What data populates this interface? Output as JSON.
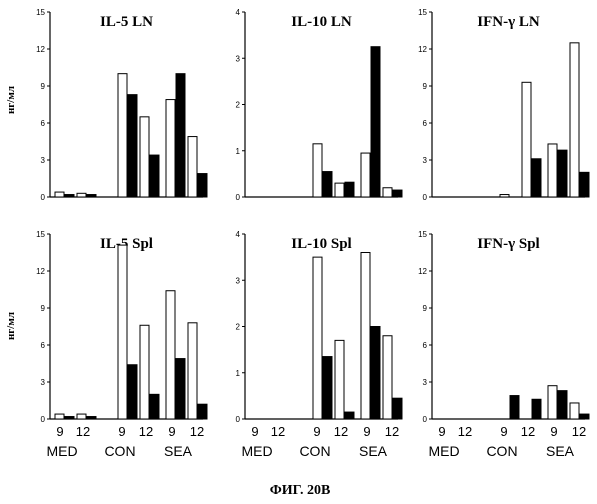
{
  "figure": {
    "caption": "ФИГ. 20В",
    "ylabel": "нг/мл"
  },
  "colors": {
    "bar_open": "#ffffff",
    "bar_filled": "#000000",
    "axis": "#000000"
  },
  "chart_data": [
    {
      "type": "bar",
      "title": "IL-5 LN",
      "ylabel": "нг/мл",
      "ylim": [
        0,
        15
      ],
      "yticks": [
        "0",
        "3",
        "6",
        "9",
        "12",
        "15"
      ],
      "bars": [
        {
          "group": "MED",
          "day": "9",
          "series": "open",
          "value": 0.4
        },
        {
          "group": "MED",
          "day": "9",
          "series": "filled",
          "value": 0.2
        },
        {
          "group": "MED",
          "day": "12",
          "series": "open",
          "value": 0.3
        },
        {
          "group": "MED",
          "day": "12",
          "series": "filled",
          "value": 0.2
        },
        {
          "group": "CON",
          "day": "9",
          "series": "open",
          "value": 10.0
        },
        {
          "group": "CON",
          "day": "9",
          "series": "filled",
          "value": 8.3
        },
        {
          "group": "CON",
          "day": "12",
          "series": "open",
          "value": 6.5
        },
        {
          "group": "CON",
          "day": "12",
          "series": "filled",
          "value": 3.4
        },
        {
          "group": "SEA",
          "day": "9",
          "series": "open",
          "value": 7.9
        },
        {
          "group": "SEA",
          "day": "9",
          "series": "filled",
          "value": 10.0
        },
        {
          "group": "SEA",
          "day": "12",
          "series": "open",
          "value": 4.9
        },
        {
          "group": "SEA",
          "day": "12",
          "series": "filled",
          "value": 1.9
        }
      ]
    },
    {
      "type": "bar",
      "title": "IL-10 LN",
      "ylabel": "",
      "ylim": [
        0,
        4
      ],
      "yticks": [
        "0",
        "1",
        "2",
        "3",
        "4"
      ],
      "bars": [
        {
          "group": "CON",
          "day": "9",
          "series": "open",
          "value": 1.15
        },
        {
          "group": "CON",
          "day": "9",
          "series": "filled",
          "value": 0.55
        },
        {
          "group": "CON",
          "day": "12",
          "series": "open",
          "value": 0.3
        },
        {
          "group": "CON",
          "day": "12",
          "series": "filled",
          "value": 0.32
        },
        {
          "group": "SEA",
          "day": "9",
          "series": "open",
          "value": 0.95
        },
        {
          "group": "SEA",
          "day": "9",
          "series": "filled",
          "value": 3.25
        },
        {
          "group": "SEA",
          "day": "12",
          "series": "open",
          "value": 0.2
        },
        {
          "group": "SEA",
          "day": "12",
          "series": "filled",
          "value": 0.15
        }
      ]
    },
    {
      "type": "bar",
      "title": "IFN-γ LN",
      "ylabel": "",
      "ylim": [
        0,
        15
      ],
      "yticks": [
        "0",
        "3",
        "6",
        "9",
        "12",
        "15"
      ],
      "bars": [
        {
          "group": "CON",
          "day": "9",
          "series": "open",
          "value": 0.2
        },
        {
          "group": "CON",
          "day": "12",
          "series": "open",
          "value": 9.3
        },
        {
          "group": "CON",
          "day": "12",
          "series": "filled",
          "value": 3.1
        },
        {
          "group": "SEA",
          "day": "9",
          "series": "open",
          "value": 4.3
        },
        {
          "group": "SEA",
          "day": "9",
          "series": "filled",
          "value": 3.8
        },
        {
          "group": "SEA",
          "day": "12",
          "series": "open",
          "value": 12.5
        },
        {
          "group": "SEA",
          "day": "12",
          "series": "filled",
          "value": 2.0
        }
      ]
    },
    {
      "type": "bar",
      "title": "IL-5 Spl",
      "ylabel": "нг/мл",
      "ylim": [
        0,
        15
      ],
      "yticks": [
        "0",
        "3",
        "6",
        "9",
        "12",
        "15"
      ],
      "xticks": [
        "9",
        "12",
        "9",
        "12",
        "9",
        "12"
      ],
      "groups": [
        "MED",
        "CON",
        "SEA"
      ],
      "bars": [
        {
          "group": "MED",
          "day": "9",
          "series": "open",
          "value": 0.4
        },
        {
          "group": "MED",
          "day": "9",
          "series": "filled",
          "value": 0.2
        },
        {
          "group": "MED",
          "day": "12",
          "series": "open",
          "value": 0.4
        },
        {
          "group": "MED",
          "day": "12",
          "series": "filled",
          "value": 0.2
        },
        {
          "group": "CON",
          "day": "9",
          "series": "open",
          "value": 14.1
        },
        {
          "group": "CON",
          "day": "9",
          "series": "filled",
          "value": 4.4
        },
        {
          "group": "CON",
          "day": "12",
          "series": "open",
          "value": 7.6
        },
        {
          "group": "CON",
          "day": "12",
          "series": "filled",
          "value": 2.0
        },
        {
          "group": "SEA",
          "day": "9",
          "series": "open",
          "value": 10.4
        },
        {
          "group": "SEA",
          "day": "9",
          "series": "filled",
          "value": 4.9
        },
        {
          "group": "SEA",
          "day": "12",
          "series": "open",
          "value": 7.8
        },
        {
          "group": "SEA",
          "day": "12",
          "series": "filled",
          "value": 1.2
        }
      ]
    },
    {
      "type": "bar",
      "title": "IL-10 Spl",
      "ylabel": "",
      "ylim": [
        0,
        4
      ],
      "yticks": [
        "0",
        "1",
        "2",
        "3",
        "4"
      ],
      "xticks": [
        "9",
        "12",
        "9",
        "12",
        "9",
        "12"
      ],
      "groups": [
        "MED",
        "CON",
        "SEA"
      ],
      "bars": [
        {
          "group": "CON",
          "day": "9",
          "series": "open",
          "value": 3.5
        },
        {
          "group": "CON",
          "day": "9",
          "series": "filled",
          "value": 1.35
        },
        {
          "group": "CON",
          "day": "12",
          "series": "open",
          "value": 1.7
        },
        {
          "group": "CON",
          "day": "12",
          "series": "filled",
          "value": 0.15
        },
        {
          "group": "SEA",
          "day": "9",
          "series": "open",
          "value": 3.6
        },
        {
          "group": "SEA",
          "day": "9",
          "series": "filled",
          "value": 2.0
        },
        {
          "group": "SEA",
          "day": "12",
          "series": "open",
          "value": 1.8
        },
        {
          "group": "SEA",
          "day": "12",
          "series": "filled",
          "value": 0.45
        }
      ]
    },
    {
      "type": "bar",
      "title": "IFN-γ Spl",
      "ylabel": "",
      "ylim": [
        0,
        15
      ],
      "yticks": [
        "0",
        "3",
        "6",
        "9",
        "12",
        "15"
      ],
      "xticks": [
        "9",
        "12",
        "9",
        "12",
        "9",
        "12"
      ],
      "groups": [
        "MED",
        "CON",
        "SEA"
      ],
      "bars": [
        {
          "group": "CON",
          "day": "9",
          "series": "filled",
          "value": 1.9
        },
        {
          "group": "CON",
          "day": "12",
          "series": "filled",
          "value": 1.6
        },
        {
          "group": "SEA",
          "day": "9",
          "series": "open",
          "value": 2.7
        },
        {
          "group": "SEA",
          "day": "9",
          "series": "filled",
          "value": 2.3
        },
        {
          "group": "SEA",
          "day": "12",
          "series": "open",
          "value": 1.3
        },
        {
          "group": "SEA",
          "day": "12",
          "series": "filled",
          "value": 0.4
        }
      ]
    }
  ]
}
